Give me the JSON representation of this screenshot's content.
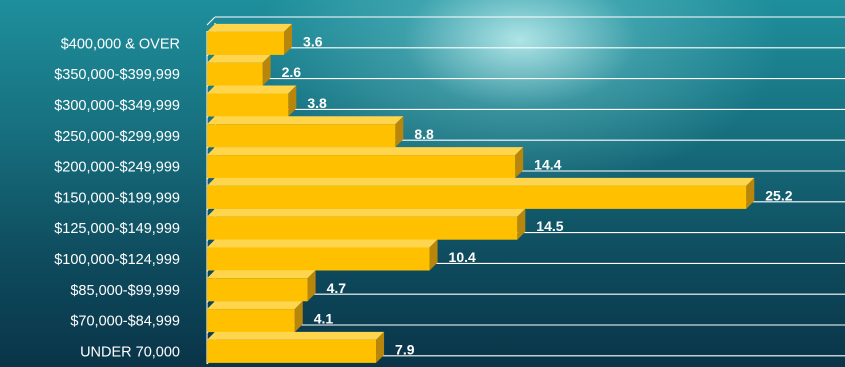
{
  "chart_data": {
    "type": "bar",
    "orientation": "horizontal",
    "categories": [
      "$400,000 & OVER",
      "$350,000-$399,999",
      "$300,000-$349,999",
      "$250,000-$299,999",
      "$200,000-$249,999",
      "$150,000-$199,999",
      "$125,000-$149,999",
      "$100,000-$124,999",
      "$85,000-$99,999",
      "$70,000-$84,999",
      "UNDER 70,000"
    ],
    "values": [
      3.6,
      2.6,
      3.8,
      8.8,
      14.4,
      25.2,
      14.5,
      10.4,
      4.7,
      4.1,
      7.9
    ],
    "data_labels": [
      "3.6",
      "2.6",
      "3.8",
      "8.8",
      "14.4",
      "25.2",
      "14.5",
      "10.4",
      "4.7",
      "4.1",
      "7.9"
    ],
    "xlim": [
      0,
      28
    ],
    "grid": true,
    "bar_color": "#ffc000",
    "bar_shade_color": "#b8860b",
    "label_color": "#ffffff",
    "gridline_color": "#ffffff",
    "style": "3d"
  }
}
